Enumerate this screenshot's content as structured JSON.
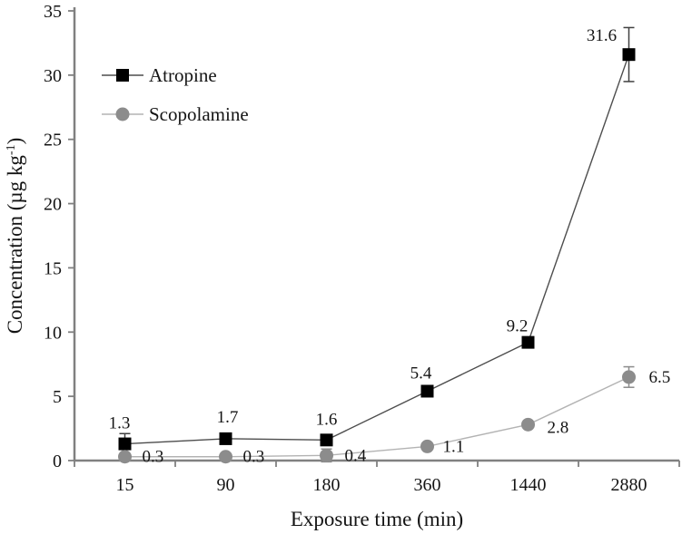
{
  "figure": {
    "background": "#ffffff",
    "axis_color": "#808080",
    "text_color": "#141414"
  },
  "chart_data": {
    "type": "line",
    "title": "",
    "xlabel": "Exposure time (min)",
    "ylabel": "Concentration (µg kg⁻¹)",
    "ylabel_parts": {
      "main": "Concentration (µg kg",
      "sup": "-1",
      "close": ")"
    },
    "categories": [
      "15",
      "90",
      "180",
      "360",
      "1440",
      "2880"
    ],
    "ylim": [
      0,
      35
    ],
    "y_ticks": [
      0,
      5,
      10,
      15,
      20,
      25,
      30,
      35
    ],
    "grid": "off",
    "legend_position": "top-left-inside",
    "series": [
      {
        "name": "Atropine",
        "values": [
          1.3,
          1.7,
          1.6,
          5.4,
          9.2,
          31.6
        ],
        "point_labels": [
          "1.3",
          "1.7",
          "1.6",
          "5.4",
          "9.2",
          "31.6"
        ],
        "errors": [
          0.8,
          0,
          0,
          0,
          0,
          2.1
        ],
        "marker": "square",
        "marker_color": "#000000",
        "line_color": "#4d4d4d",
        "error_color": "#404040",
        "label_side": "above",
        "label_offsets": [
          [
            -6,
            -17
          ],
          [
            2,
            -18
          ],
          [
            0,
            -17
          ],
          [
            -7,
            -14
          ],
          [
            -12,
            -12
          ],
          [
            -30,
            -15
          ]
        ]
      },
      {
        "name": "Scopolamine",
        "values": [
          0.3,
          0.3,
          0.4,
          1.1,
          2.8,
          6.5
        ],
        "point_labels": [
          "0.3",
          "0.3",
          "0.4",
          "1.1",
          "2.8",
          "6.5"
        ],
        "errors": [
          0,
          0,
          0.5,
          0,
          0,
          0.8
        ],
        "marker": "circle",
        "marker_color": "#8c8c8c",
        "line_color": "#b3b3b3",
        "error_color": "#8c8c8c",
        "label_side": "right",
        "label_offsets": [
          [
            19,
            6
          ],
          [
            19,
            6
          ],
          [
            20,
            6
          ],
          [
            17,
            6
          ],
          [
            21,
            9
          ],
          [
            22,
            6
          ]
        ]
      }
    ]
  }
}
